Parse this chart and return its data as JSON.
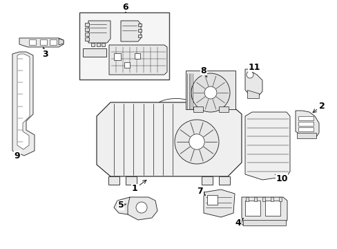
{
  "bg_color": "#ffffff",
  "line_color": "#1a1a1a",
  "fig_width": 4.89,
  "fig_height": 3.6,
  "dpi": 100,
  "label_fontsize": 9,
  "label_color": "#000000"
}
